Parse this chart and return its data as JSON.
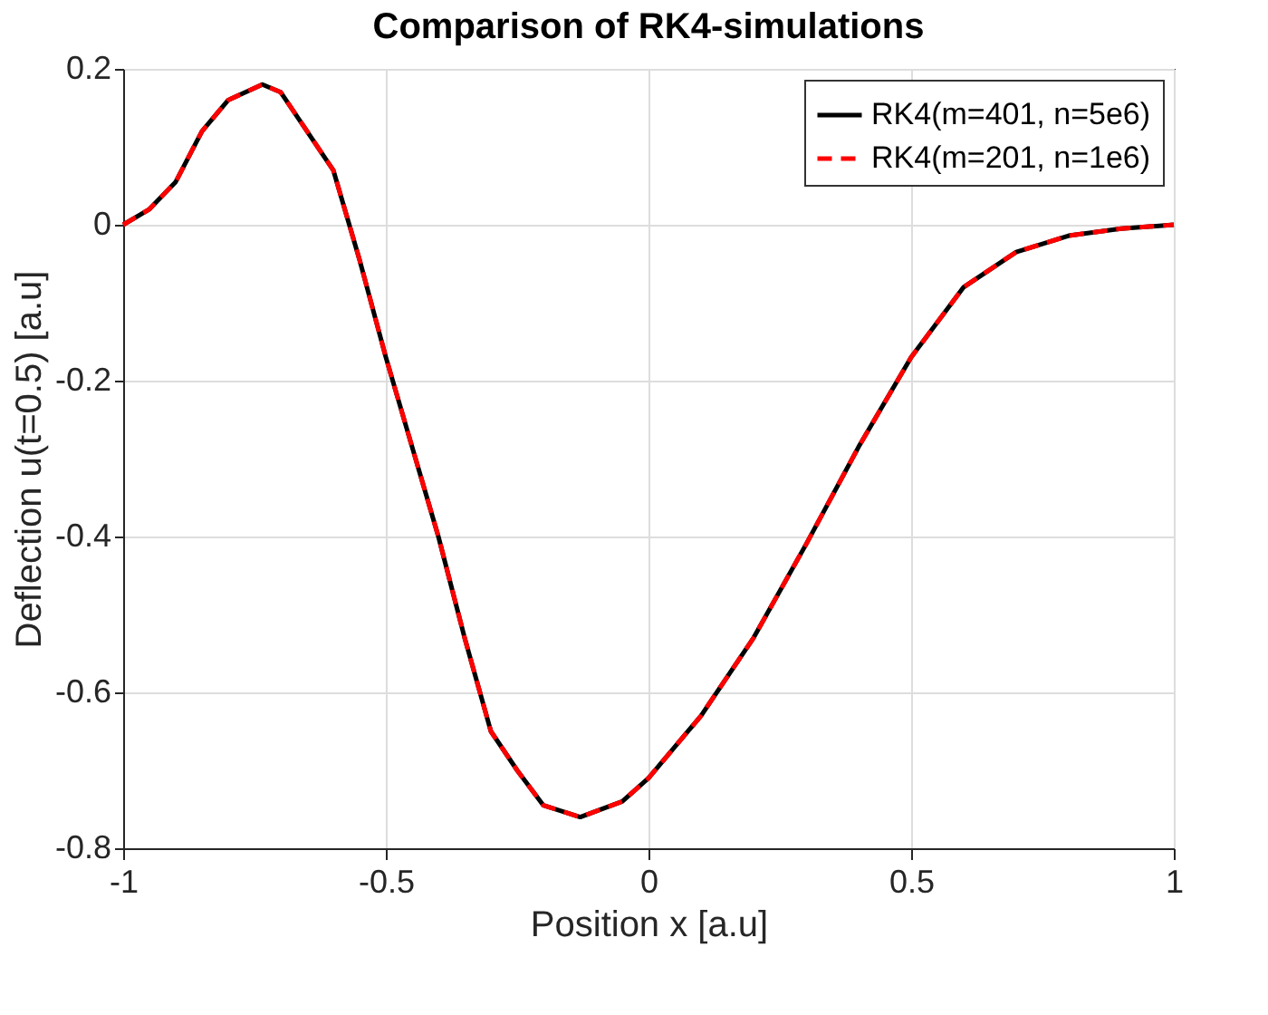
{
  "chart_data": {
    "type": "line",
    "title": "Comparison of RK4-simulations",
    "xlabel": "Position x [a.u]",
    "ylabel": "Deflection u(t=0.5) [a.u]",
    "x": [
      -1,
      -0.95,
      -0.9,
      -0.85,
      -0.8,
      -0.735,
      -0.7,
      -0.6,
      -0.55,
      -0.5,
      -0.45,
      -0.4,
      -0.35,
      -0.3,
      -0.25,
      -0.2,
      -0.13,
      -0.05,
      0,
      0.1,
      0.2,
      0.3,
      0.4,
      0.5,
      0.6,
      0.7,
      0.8,
      0.9,
      1
    ],
    "series": [
      {
        "name": "RK4(m=401, n=5e6)",
        "color": "#000000",
        "line_style": "solid",
        "values": [
          0,
          0.02,
          0.055,
          0.12,
          0.16,
          0.18,
          0.17,
          0.07,
          -0.045,
          -0.17,
          -0.285,
          -0.4,
          -0.53,
          -0.65,
          -0.7,
          -0.745,
          -0.76,
          -0.74,
          -0.71,
          -0.63,
          -0.53,
          -0.41,
          -0.285,
          -0.17,
          -0.08,
          -0.035,
          -0.014,
          -0.005,
          0
        ]
      },
      {
        "name": "RK4(m=201, n=1e6)",
        "color": "#ff0000",
        "line_style": "dashed",
        "values": [
          0,
          0.02,
          0.055,
          0.12,
          0.16,
          0.18,
          0.17,
          0.07,
          -0.045,
          -0.17,
          -0.285,
          -0.4,
          -0.53,
          -0.65,
          -0.7,
          -0.745,
          -0.76,
          -0.74,
          -0.71,
          -0.63,
          -0.53,
          -0.41,
          -0.285,
          -0.17,
          -0.08,
          -0.035,
          -0.014,
          -0.005,
          0
        ]
      }
    ],
    "xlim": [
      -1,
      1
    ],
    "xticks": [
      {
        "value": -1,
        "label": "-1"
      },
      {
        "value": -0.5,
        "label": "-0.5"
      },
      0,
      {
        "value": 0.5,
        "label": "0.5"
      },
      1
    ],
    "ylim": [
      -0.8,
      0.2
    ],
    "yticks": [
      {
        "value": -0.8,
        "label": "-0.8"
      },
      {
        "value": -0.6,
        "label": "-0.6"
      },
      {
        "value": -0.4,
        "label": "-0.4"
      },
      {
        "value": -0.2,
        "label": "-0.2"
      },
      0,
      {
        "value": 0.2,
        "label": "0.2"
      }
    ],
    "grid": true,
    "legend": "top right",
    "marker": "none"
  }
}
